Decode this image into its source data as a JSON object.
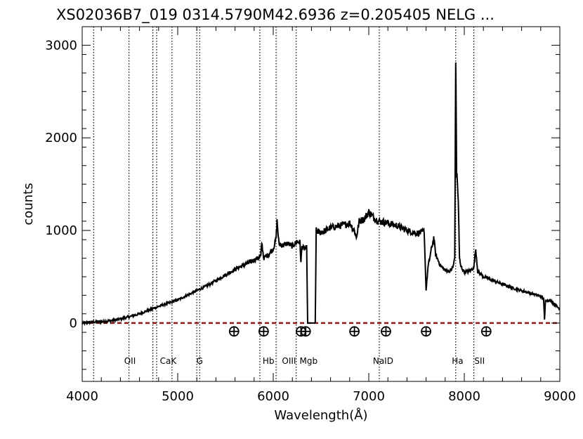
{
  "chart_data": {
    "type": "line",
    "title": "XS02036B7_019  0314.5790M42.6936  z=0.205405     NELG  ...",
    "xlabel": "Wavelength(Å)",
    "ylabel": "counts",
    "xlim": [
      4000,
      9000
    ],
    "ylim": [
      -630,
      3200
    ],
    "x_ticks": [
      4000,
      5000,
      6000,
      7000,
      8000,
      9000
    ],
    "y_ticks": [
      0,
      1000,
      2000,
      3000
    ],
    "grid": false,
    "legend": "none",
    "colors": {
      "spectrum": "#000000",
      "zero_line": "#8b1a1a",
      "line_markers": "#000000"
    },
    "series": [
      {
        "x": [
          4000,
          4100,
          4200,
          4300,
          4400,
          4500,
          4600,
          4700,
          4800,
          4900,
          5000,
          5100,
          5200,
          5300,
          5400,
          5500,
          5600,
          5700,
          5800,
          5870,
          5880,
          5900,
          5950,
          6000,
          6030,
          6040,
          6060,
          6100,
          6150,
          6200,
          6250,
          6280,
          6290,
          6300,
          6330,
          6350,
          6360,
          6440,
          6450,
          6480,
          6500,
          6550,
          6600,
          6700,
          6800,
          6850,
          6870,
          6900,
          6950,
          7000,
          7050,
          7100,
          7200,
          7300,
          7400,
          7500,
          7560,
          7580,
          7600,
          7620,
          7650,
          7680,
          7700,
          7750,
          7800,
          7850,
          7880,
          7900,
          7910,
          7920,
          7930,
          7940,
          7950,
          7960,
          8000,
          8050,
          8100,
          8120,
          8140,
          8200,
          8300,
          8400,
          8500,
          8600,
          8700,
          8800,
          8830,
          8840,
          8850,
          8900,
          8950,
          9000
        ],
        "y": [
          0,
          10,
          15,
          25,
          45,
          70,
          100,
          140,
          180,
          215,
          250,
          300,
          350,
          400,
          460,
          520,
          580,
          630,
          680,
          720,
          870,
          700,
          740,
          800,
          920,
          1100,
          850,
          840,
          860,
          830,
          880,
          870,
          650,
          820,
          800,
          810,
          0,
          0,
          1000,
          980,
          980,
          1000,
          1030,
          1050,
          1080,
          1000,
          920,
          1100,
          1120,
          1200,
          1140,
          1100,
          1080,
          1050,
          1000,
          970,
          980,
          1000,
          350,
          600,
          770,
          920,
          740,
          620,
          570,
          560,
          600,
          700,
          2900,
          1600,
          1500,
          1200,
          700,
          620,
          550,
          560,
          600,
          800,
          560,
          500,
          460,
          420,
          380,
          350,
          320,
          290,
          260,
          30,
          250,
          240,
          200,
          150
        ]
      }
    ],
    "zero_line": 0,
    "vertical_lines": [
      {
        "x": 4120
      },
      {
        "x": 4490,
        "label": "OII"
      },
      {
        "x": 4740
      },
      {
        "x": 4780
      },
      {
        "x": 4940,
        "label": "CaK"
      },
      {
        "x": 5200
      },
      {
        "x": 5230,
        "label": "G"
      },
      {
        "x": 5860
      },
      {
        "x": 6030,
        "label": "Hb"
      },
      {
        "x": 6240,
        "label": "OIII"
      },
      {
        "x": 7110,
        "label": "NaID"
      },
      {
        "x": 7910,
        "label": "Ha"
      },
      {
        "x": 8100,
        "label": "SII"
      }
    ],
    "line_labels": [
      {
        "text": "OII",
        "x": 4500
      },
      {
        "text": "CaK",
        "x": 4900
      },
      {
        "text": "G",
        "x": 5230
      },
      {
        "text": "Hb",
        "x": 5950
      },
      {
        "text": "OIII",
        "x": 6165
      },
      {
        "text": "Mgb",
        "x": 6370
      },
      {
        "text": "NaID",
        "x": 7150
      },
      {
        "text": "Ha",
        "x": 7930
      },
      {
        "text": "SII",
        "x": 8160
      }
    ],
    "telluric_markers": {
      "y": -90,
      "x": [
        5590,
        5900,
        6290,
        6340,
        6850,
        7180,
        7600,
        8230
      ]
    }
  }
}
